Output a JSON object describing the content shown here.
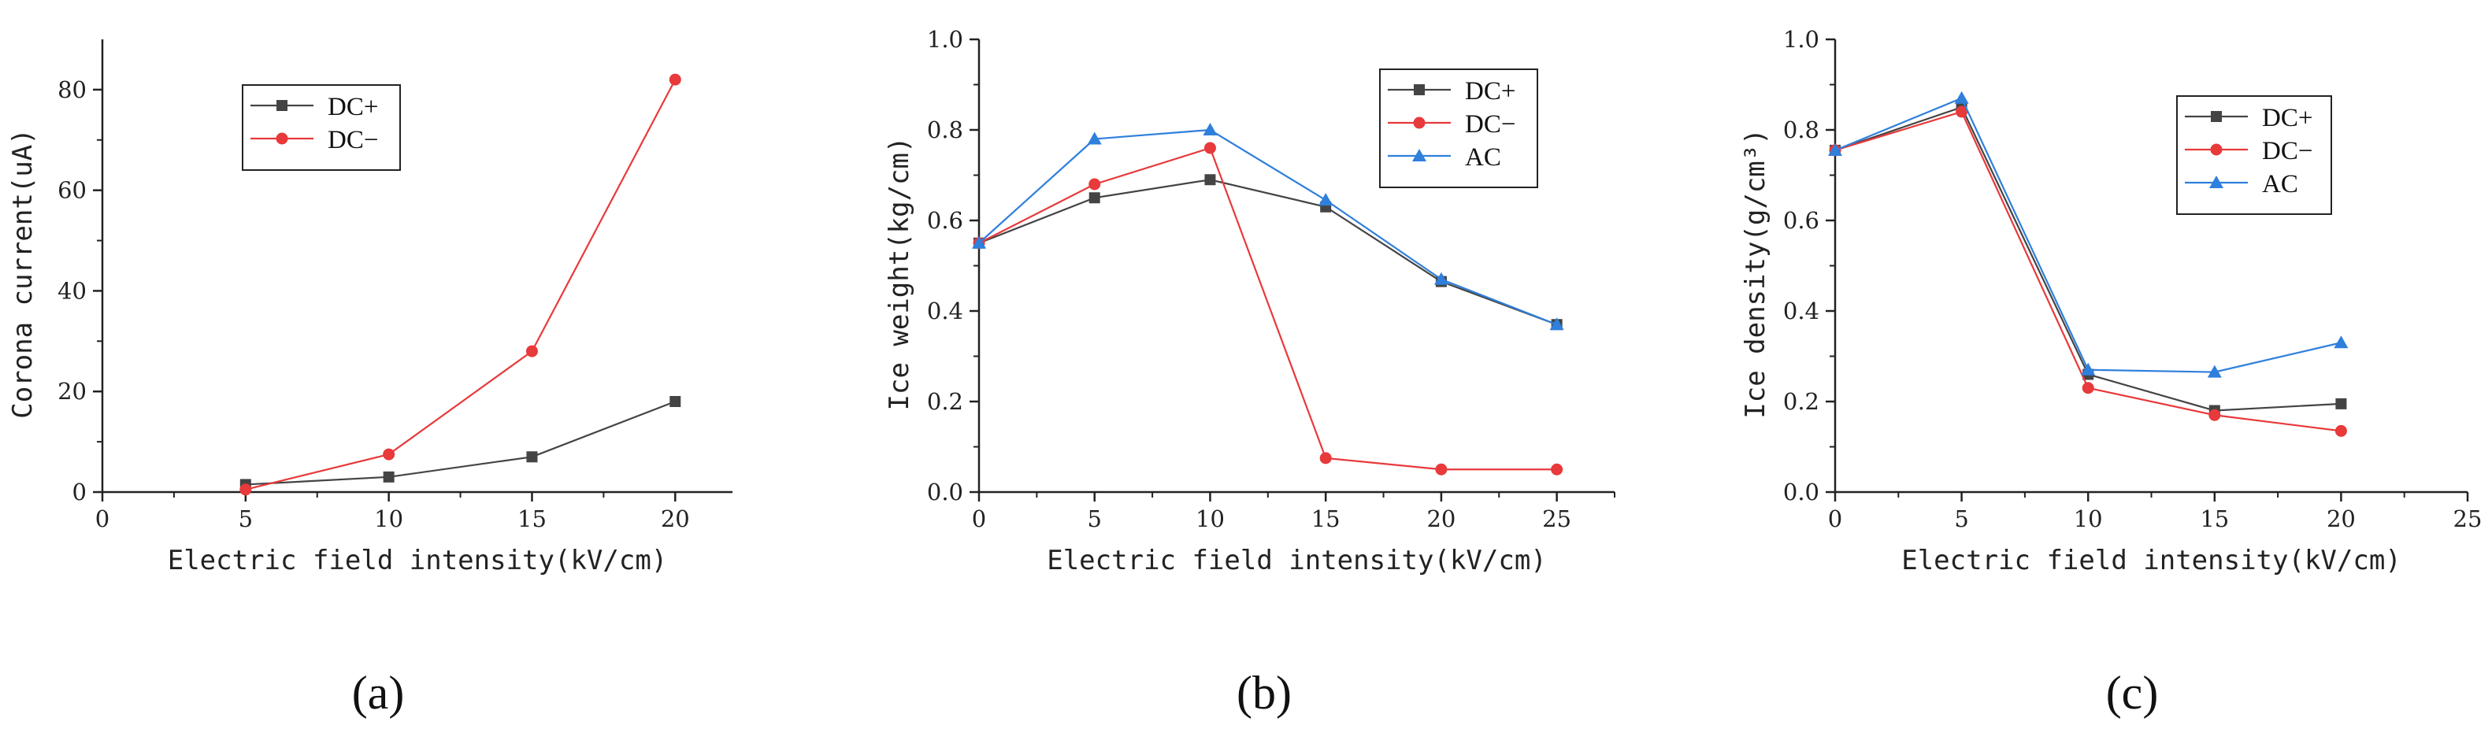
{
  "chart_data": [
    {
      "type": "line",
      "panel_label": "(a)",
      "xlabel": "Electric field intensity(kV/cm)",
      "ylabel": "Corona current(uA)",
      "xlim": [
        0,
        22
      ],
      "ylim": [
        0,
        90
      ],
      "xticks": [
        0,
        5,
        10,
        15,
        20
      ],
      "yticks": [
        0,
        20,
        40,
        60,
        80
      ],
      "ytick_labels": [
        "0",
        "20",
        "40",
        "60",
        "80"
      ],
      "legend": "top-left",
      "series": [
        {
          "name": "DC+",
          "color": "#444444",
          "marker": "square",
          "x": [
            5,
            10,
            15,
            20
          ],
          "y": [
            1.5,
            3,
            7,
            18
          ]
        },
        {
          "name": "DC−",
          "color": "#e8393b",
          "marker": "circle",
          "x": [
            5,
            10,
            15,
            20
          ],
          "y": [
            0.5,
            7.5,
            28,
            82
          ]
        }
      ]
    },
    {
      "type": "line",
      "panel_label": "(b)",
      "xlabel": "Electric field intensity(kV/cm)",
      "ylabel": "Ice weight(kg/cm)",
      "xlim": [
        0,
        27.5
      ],
      "ylim": [
        0,
        1.0
      ],
      "xticks": [
        0,
        5,
        10,
        15,
        20,
        25
      ],
      "yticks": [
        0,
        0.2,
        0.4,
        0.6,
        0.8,
        1.0
      ],
      "ytick_labels": [
        "0.0",
        "0.2",
        "0.4",
        "0.6",
        "0.8",
        "1.0"
      ],
      "legend": "top-right",
      "series": [
        {
          "name": "DC+",
          "color": "#444444",
          "marker": "square",
          "x": [
            0,
            5,
            10,
            15,
            20,
            25
          ],
          "y": [
            0.55,
            0.65,
            0.69,
            0.63,
            0.465,
            0.37
          ]
        },
        {
          "name": "DC−",
          "color": "#e8393b",
          "marker": "circle",
          "x": [
            0,
            5,
            10,
            15,
            20,
            25
          ],
          "y": [
            0.55,
            0.68,
            0.76,
            0.075,
            0.05,
            0.05
          ]
        },
        {
          "name": "AC",
          "color": "#2f7fdc",
          "marker": "triangle",
          "x": [
            0,
            5,
            10,
            15,
            20,
            25
          ],
          "y": [
            0.55,
            0.78,
            0.8,
            0.645,
            0.47,
            0.37
          ]
        }
      ]
    },
    {
      "type": "line",
      "panel_label": "(c)",
      "xlabel": "Electric field intensity(kV/cm)",
      "ylabel": "Ice density(g/cm³)",
      "xlim": [
        0,
        25
      ],
      "ylim": [
        0,
        1.0
      ],
      "xticks": [
        0,
        5,
        10,
        15,
        20,
        25
      ],
      "yticks": [
        0,
        0.2,
        0.4,
        0.6,
        0.8,
        1.0
      ],
      "ytick_labels": [
        "0.0",
        "0.2",
        "0.4",
        "0.6",
        "0.8",
        "1.0"
      ],
      "legend": "top-right",
      "series": [
        {
          "name": "DC+",
          "color": "#444444",
          "marker": "square",
          "x": [
            0,
            5,
            10,
            15,
            20
          ],
          "y": [
            0.755,
            0.85,
            0.26,
            0.18,
            0.195
          ]
        },
        {
          "name": "DC−",
          "color": "#e8393b",
          "marker": "circle",
          "x": [
            0,
            5,
            10,
            15,
            20
          ],
          "y": [
            0.755,
            0.84,
            0.23,
            0.17,
            0.135
          ]
        },
        {
          "name": "AC",
          "color": "#2f7fdc",
          "marker": "triangle",
          "x": [
            0,
            5,
            10,
            15,
            20
          ],
          "y": [
            0.755,
            0.87,
            0.27,
            0.265,
            0.33
          ]
        }
      ]
    }
  ]
}
